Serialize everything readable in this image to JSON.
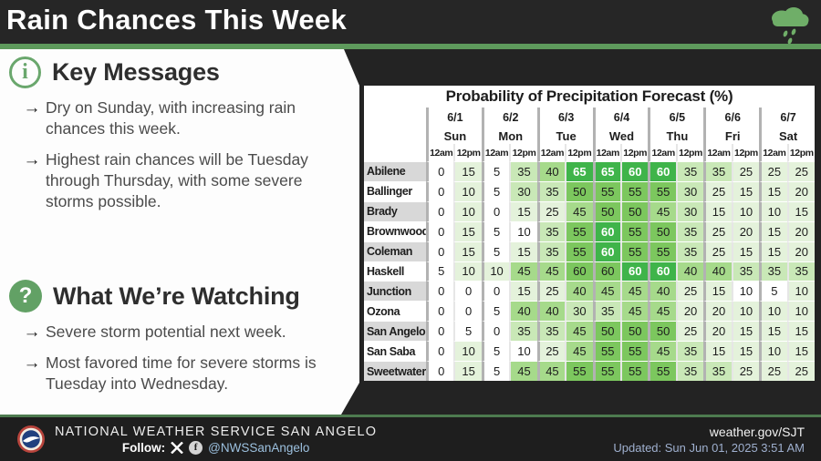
{
  "banner": {
    "title": "Rain Chances This Week"
  },
  "key_messages": {
    "heading": "Key Messages",
    "icon_glyph": "i",
    "bullets": [
      "Dry on Sunday, with increasing rain chances this week.",
      "Highest rain chances will be Tuesday through Thursday, with some severe storms possible."
    ]
  },
  "watching": {
    "heading": "What We’re Watching",
    "icon_glyph": "?",
    "bullets": [
      "Severe storm potential next week.",
      "Most favored time for severe storms is Tuesday into Wednesday."
    ]
  },
  "bullet_glyph": "→",
  "chart_data": {
    "type": "heatmap",
    "title": "Probability of Precipitation Forecast (%)",
    "dates": [
      "6/1",
      "6/2",
      "6/3",
      "6/4",
      "6/5",
      "6/6",
      "6/7"
    ],
    "days": [
      "Sun",
      "Mon",
      "Tue",
      "Wed",
      "Thu",
      "Fri",
      "Sat"
    ],
    "times": [
      "12am",
      "12pm"
    ],
    "rows": [
      {
        "city": "Abilene",
        "values": [
          0,
          15,
          5,
          35,
          40,
          65,
          65,
          60,
          60,
          35,
          35,
          25,
          25,
          25
        ],
        "bright": [
          5,
          6,
          7,
          8
        ]
      },
      {
        "city": "Ballinger",
        "values": [
          0,
          10,
          5,
          30,
          35,
          50,
          55,
          55,
          55,
          30,
          25,
          15,
          15,
          20
        ],
        "bright": []
      },
      {
        "city": "Brady",
        "values": [
          0,
          10,
          0,
          15,
          25,
          45,
          50,
          50,
          45,
          30,
          15,
          10,
          10,
          15
        ],
        "bright": []
      },
      {
        "city": "Brownwood",
        "values": [
          0,
          15,
          5,
          10,
          35,
          55,
          60,
          55,
          50,
          35,
          25,
          20,
          15,
          20
        ],
        "bright": [
          6
        ],
        "plain": [
          3
        ]
      },
      {
        "city": "Coleman",
        "values": [
          0,
          15,
          5,
          15,
          35,
          55,
          60,
          55,
          55,
          35,
          25,
          15,
          15,
          20
        ],
        "bright": [
          6
        ]
      },
      {
        "city": "Haskell",
        "values": [
          5,
          10,
          10,
          45,
          45,
          60,
          60,
          60,
          60,
          40,
          40,
          35,
          35,
          35
        ],
        "bright": [
          7,
          8
        ]
      },
      {
        "city": "Junction",
        "values": [
          0,
          0,
          0,
          15,
          25,
          40,
          45,
          45,
          40,
          25,
          15,
          10,
          5,
          10
        ],
        "bright": [],
        "plain": [
          11
        ]
      },
      {
        "city": "Ozona",
        "values": [
          0,
          0,
          5,
          40,
          40,
          30,
          35,
          45,
          45,
          20,
          20,
          10,
          10,
          10
        ],
        "bright": []
      },
      {
        "city": "San Angelo",
        "values": [
          0,
          5,
          0,
          35,
          35,
          45,
          50,
          50,
          50,
          25,
          20,
          15,
          15,
          15
        ],
        "bright": []
      },
      {
        "city": "San Saba",
        "values": [
          0,
          10,
          5,
          10,
          25,
          45,
          55,
          55,
          45,
          35,
          15,
          15,
          10,
          15
        ],
        "bright": [],
        "plain": [
          3
        ]
      },
      {
        "city": "Sweetwater",
        "values": [
          0,
          15,
          5,
          45,
          45,
          55,
          55,
          55,
          55,
          35,
          35,
          25,
          25,
          25
        ],
        "bright": []
      }
    ],
    "color_scale": {
      "0-5": "#ffffff",
      "10-25": "#e4f2db",
      "30-35": "#c9e8b7",
      "40-45": "#a6da8b",
      "50-55": "#7cc75e",
      "60-65": "#3fb44a"
    },
    "legend_position": "none",
    "grid": true
  },
  "footer": {
    "agency": "NATIONAL WEATHER SERVICE SAN ANGELO",
    "follow_label": "Follow:",
    "handle": "@NWSSanAngelo",
    "site": "weather.gov/SJT",
    "updated": "Updated: Sun Jun 01, 2025 3:51 AM"
  },
  "colors": {
    "banner_bg": "#262626",
    "accent_green": "#5e9a5c",
    "panel_dark": "#232323",
    "footer_bg": "#1e1e1e",
    "footer_line_green": "#4d7a4f",
    "icon_green": "#6aa76d",
    "city_label_gray": "#d8d8d8",
    "bright_cell_green": "#3fb44a"
  }
}
